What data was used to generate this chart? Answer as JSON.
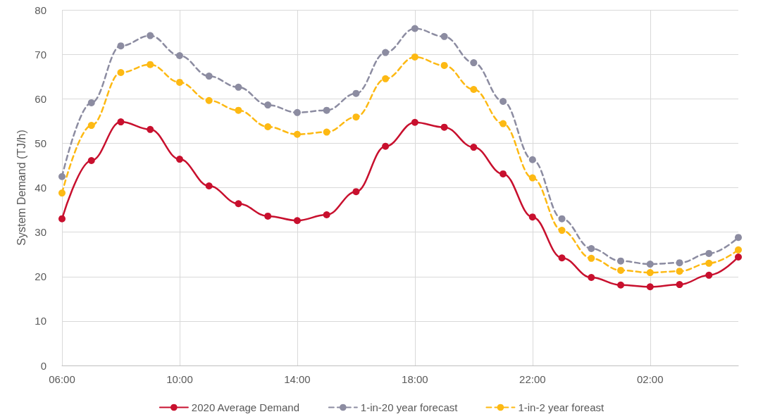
{
  "chart_data": {
    "type": "line",
    "ylabel": "System Demand (TJ/h)",
    "categories": [
      "06:00",
      null,
      null,
      null,
      "10:00",
      null,
      null,
      null,
      "14:00",
      null,
      null,
      null,
      "18:00",
      null,
      null,
      null,
      "22:00",
      null,
      null,
      null,
      "02:00",
      null,
      null,
      null
    ],
    "series": [
      {
        "name": "2020 Average Demand",
        "color": "#c8102e",
        "line_style": "solid",
        "values": [
          33.0,
          46.1,
          54.8,
          53.1,
          46.4,
          40.4,
          36.4,
          33.6,
          32.6,
          33.9,
          39.1,
          49.3,
          54.7,
          53.6,
          49.1,
          43.1,
          33.4,
          24.2,
          19.8,
          18.1,
          17.7,
          18.2,
          20.3,
          24.4
        ]
      },
      {
        "name": "1-in-20 year forecast",
        "color": "#8c8ca1",
        "line_style": "dashed",
        "values": [
          42.5,
          59.1,
          71.9,
          74.2,
          69.7,
          65.1,
          62.6,
          58.6,
          56.9,
          57.4,
          61.2,
          70.4,
          75.8,
          74.0,
          68.1,
          59.4,
          46.3,
          33.0,
          26.3,
          23.5,
          22.8,
          23.1,
          25.2,
          28.8
        ]
      },
      {
        "name": "1-in-2 year foreast",
        "color": "#fdb913",
        "line_style": "dashed",
        "values": [
          38.8,
          54.0,
          65.9,
          67.7,
          63.7,
          59.6,
          57.4,
          53.7,
          52.0,
          52.5,
          55.9,
          64.5,
          69.4,
          67.5,
          62.1,
          54.4,
          42.2,
          30.4,
          24.1,
          21.4,
          20.9,
          21.2,
          23.0,
          26.0
        ]
      }
    ],
    "ylim": [
      0,
      80
    ],
    "yticks": [
      0,
      10,
      20,
      30,
      40,
      50,
      60,
      70,
      80
    ],
    "grid": true,
    "legend": "bottom",
    "marker": "circle"
  }
}
